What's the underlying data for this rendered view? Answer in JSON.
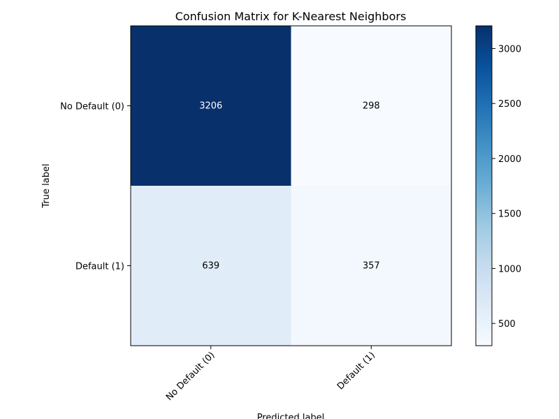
{
  "chart_data": {
    "type": "heatmap",
    "title": "Confusion Matrix for K-Nearest Neighbors",
    "xlabel": "Predicted label",
    "ylabel": "True label",
    "x_categories": [
      "No Default (0)",
      "Default (1)"
    ],
    "y_categories": [
      "No Default (0)",
      "Default (1)"
    ],
    "values": [
      [
        3206,
        298
      ],
      [
        639,
        357
      ]
    ],
    "colormap": "Blues",
    "color_range": [
      298,
      3206
    ],
    "colorbar_ticks": [
      500,
      1000,
      1500,
      2000,
      2500,
      3000
    ],
    "text_colors": {
      "light": "#ffffff",
      "dark": "#000000"
    },
    "x_tick_rotation_deg": 45
  }
}
